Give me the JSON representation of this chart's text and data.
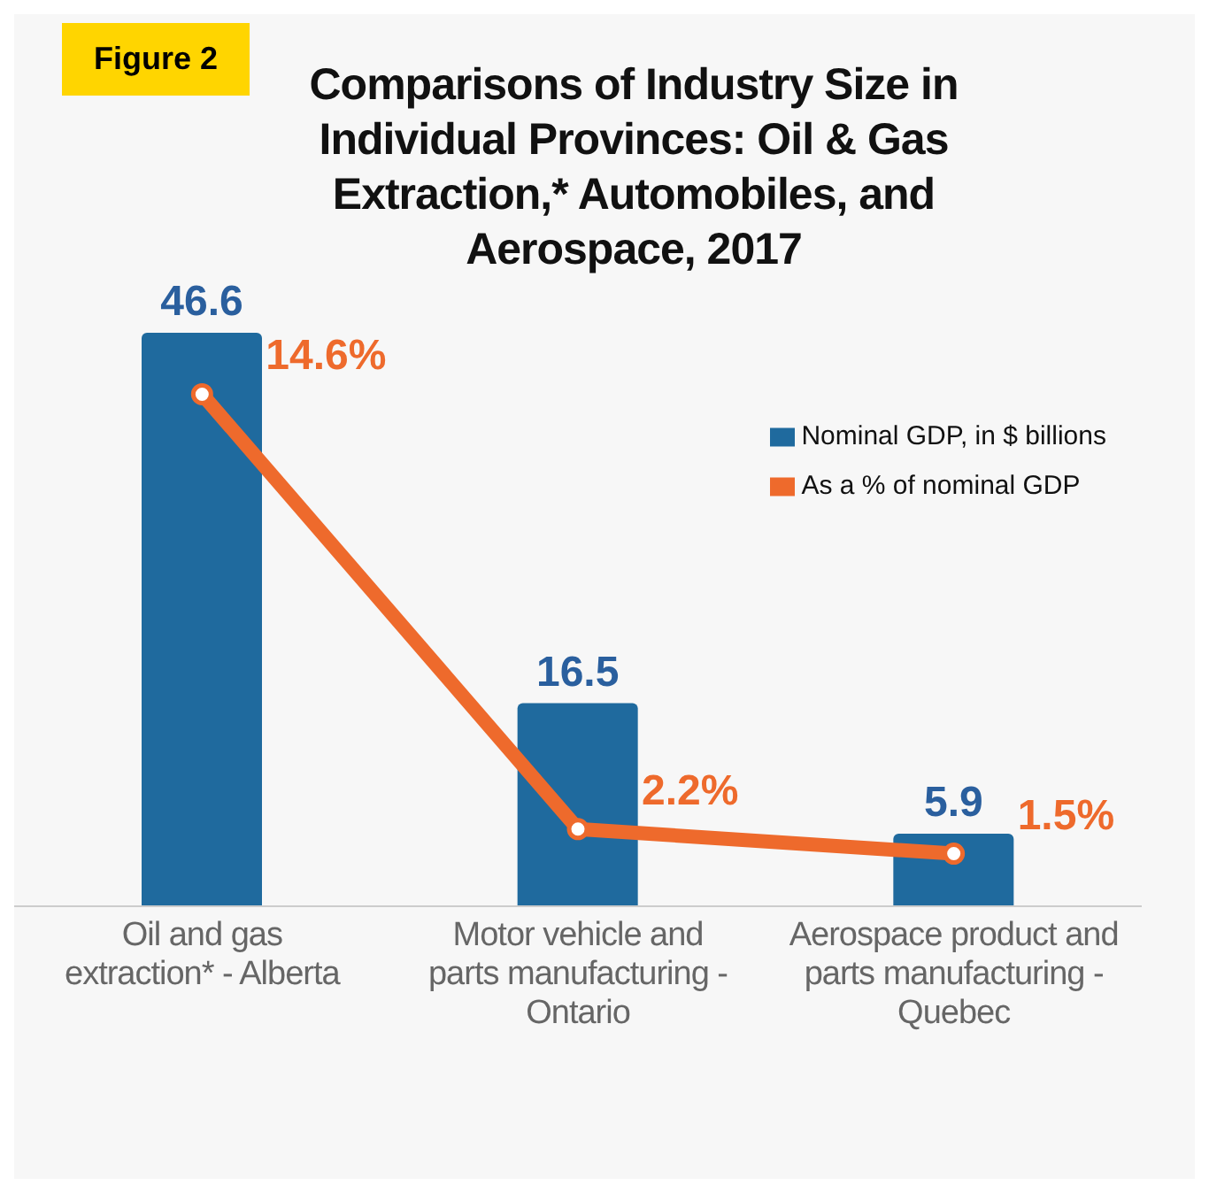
{
  "chart_data": {
    "type": "bar",
    "title": "Comparisons of Industry Size in Individual Provinces: Oil & Gas Extraction,* Automobiles, and Aerospace, 2017",
    "annotations": [
      "Figure 2"
    ],
    "categories": [
      "Oil and gas extraction* - Alberta",
      "Motor vehicle and parts manufacturing - Ontario",
      "Aerospace product and parts manufacturing - Quebec"
    ],
    "series": [
      {
        "name": "Nominal GDP, in $ billions",
        "color": "#1f6a9e",
        "values": [
          46.6,
          16.5,
          5.9
        ],
        "value_labels": [
          "46.6",
          "16.5",
          "5.9"
        ]
      },
      {
        "name": "As a % of nominal GDP",
        "type": "line",
        "axis": "y2",
        "color": "#ee6a2c",
        "values": [
          14.6,
          2.2,
          1.5
        ],
        "value_labels": [
          "14.6%",
          "2.2%",
          "1.5%"
        ],
        "marker": "circle"
      }
    ],
    "tick_labels": "x",
    "legend": "top right"
  }
}
